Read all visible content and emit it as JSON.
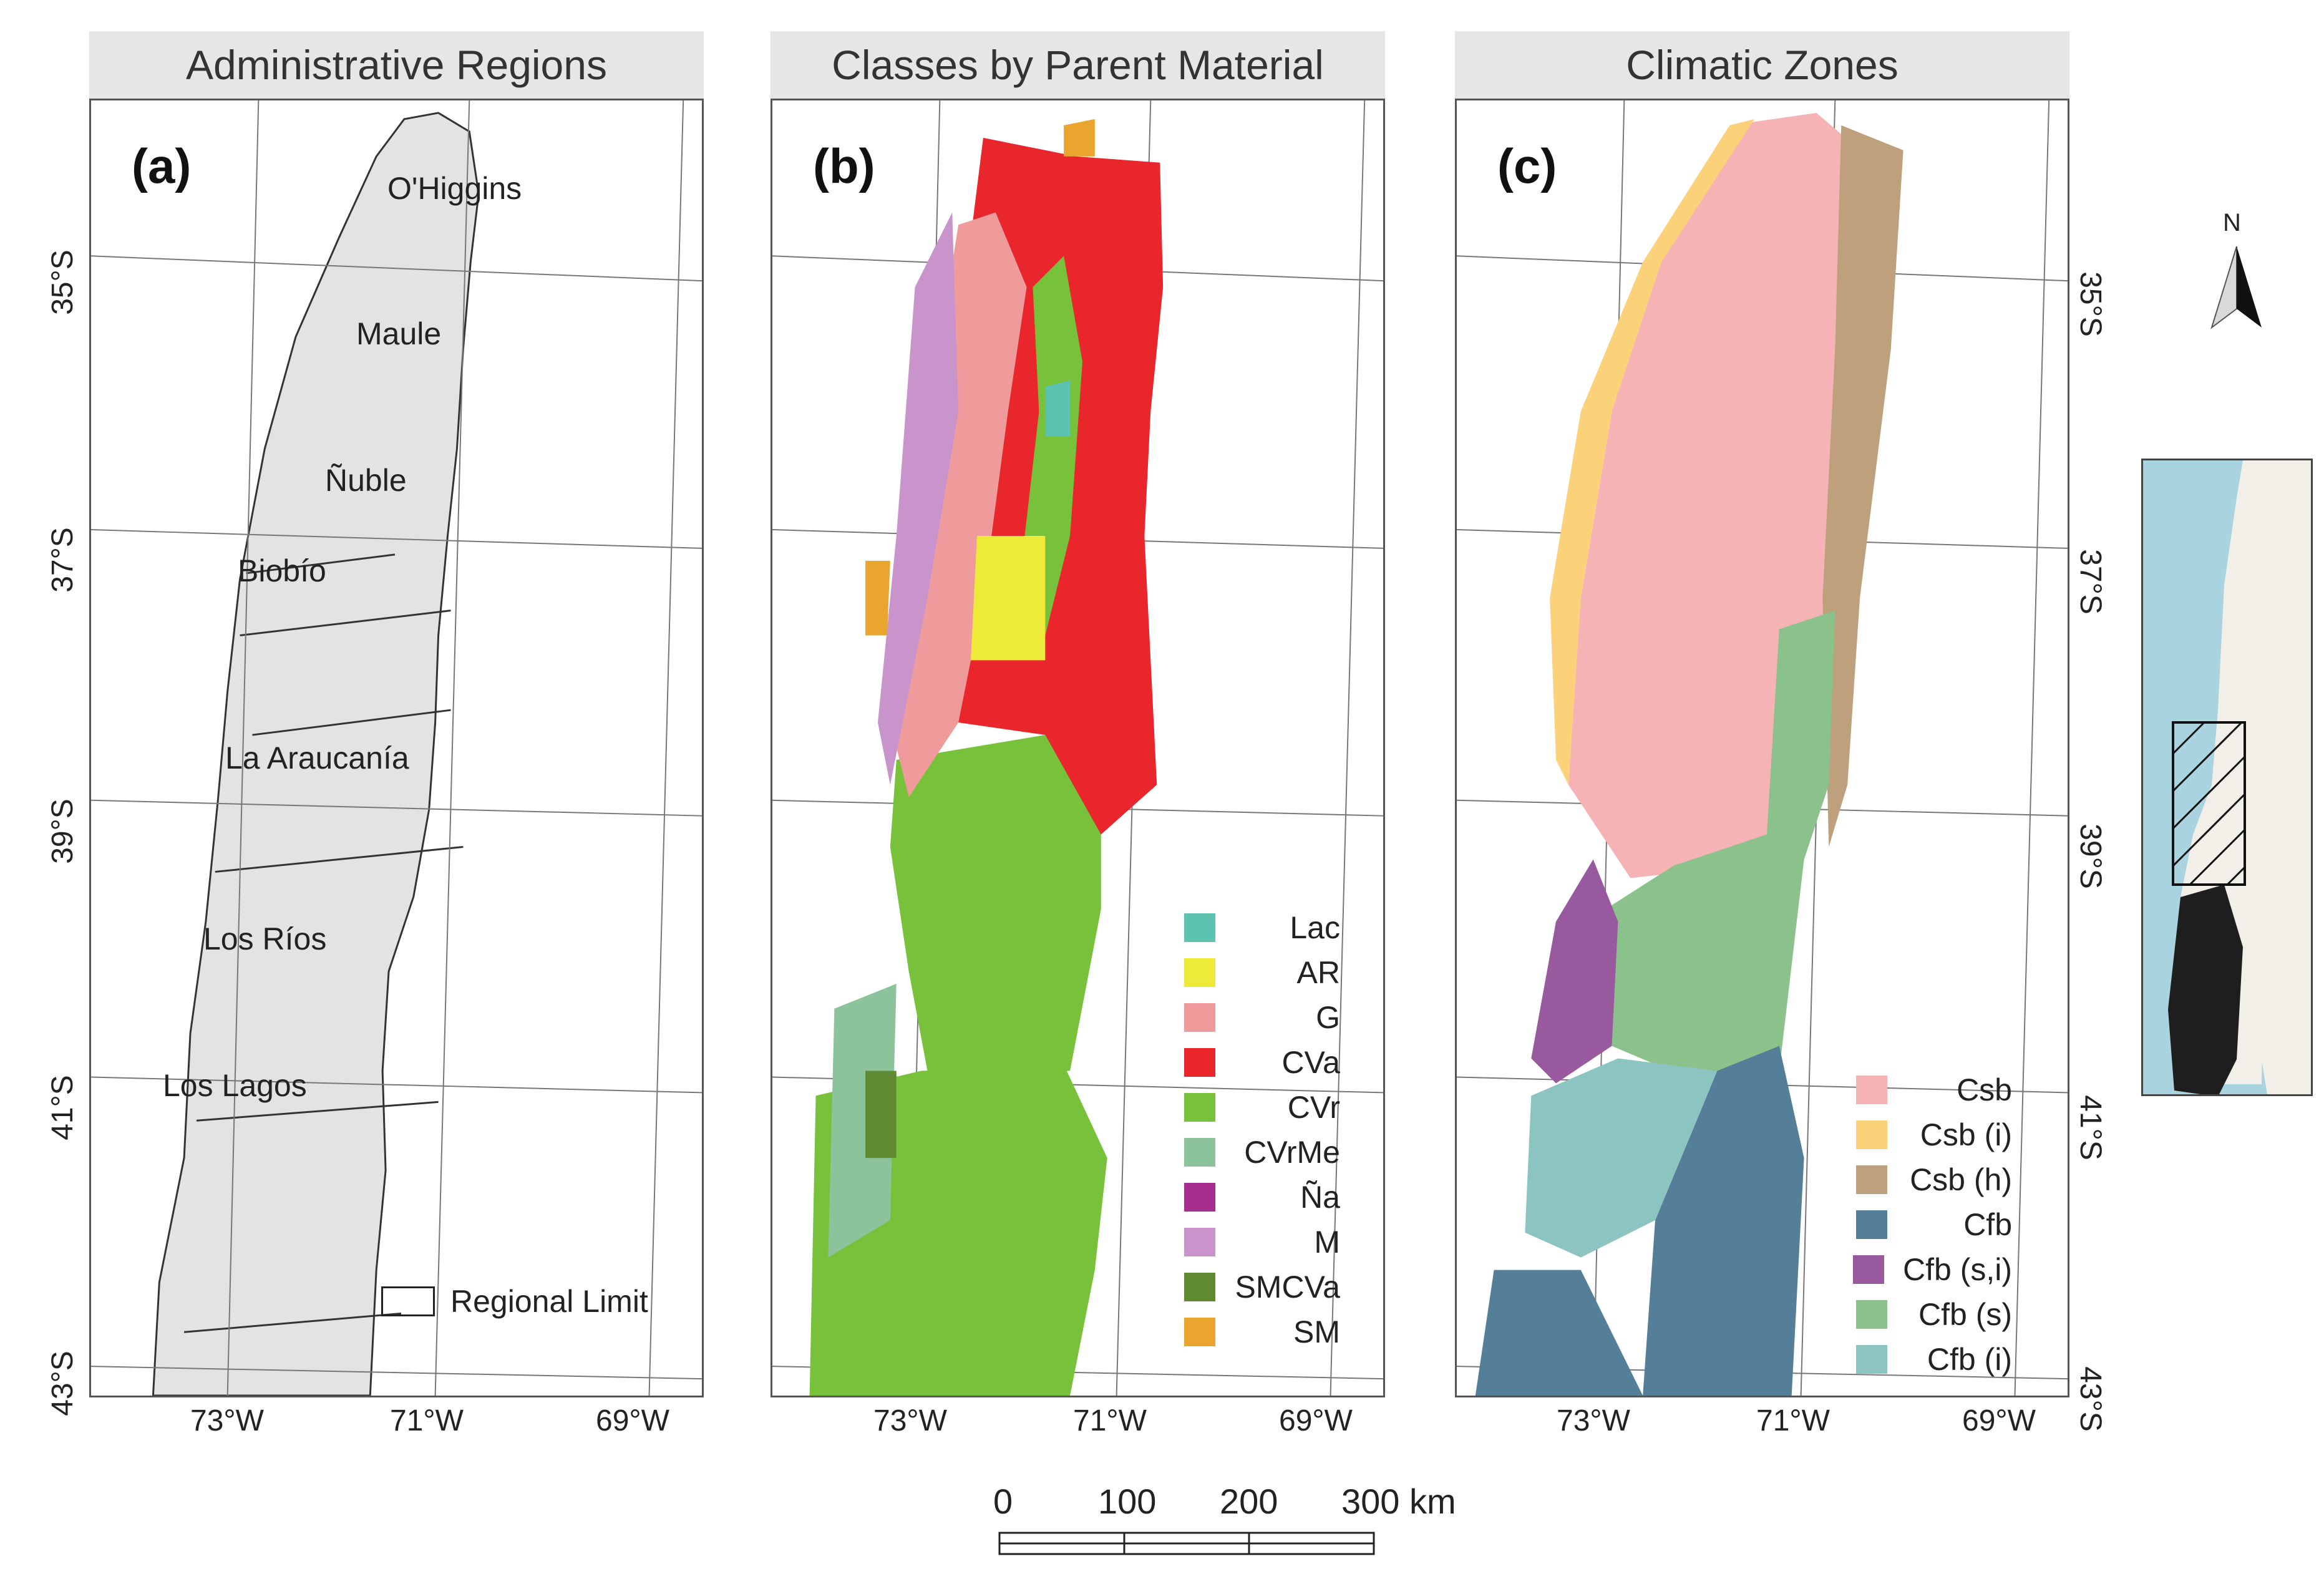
{
  "panels": [
    {
      "title": "Administrative Regions",
      "letter": "(a)"
    },
    {
      "title": "Classes by Parent Material",
      "letter": "(b)"
    },
    {
      "title": "Climatic Zones",
      "letter": "(c)"
    }
  ],
  "regions": [
    "O'Higgins",
    "Maule",
    "Ñuble",
    "Biobío",
    "La Araucanía",
    "Los Ríos",
    "Los Lagos"
  ],
  "regional_limit_label": "Regional Limit",
  "parent_material_legend": [
    {
      "label": "Lac",
      "color": "#5cc3b0"
    },
    {
      "label": "AR",
      "color": "#eeea3a"
    },
    {
      "label": "G",
      "color": "#f09b9b"
    },
    {
      "label": "CVa",
      "color": "#e8262c"
    },
    {
      "label": "CVr",
      "color": "#77c23a"
    },
    {
      "label": "CVrMe",
      "color": "#8dc39a"
    },
    {
      "label": "Ña",
      "color": "#a72d8f"
    },
    {
      "label": "M",
      "color": "#c994cc"
    },
    {
      "label": "SMCVa",
      "color": "#5f8a32"
    },
    {
      "label": "SM",
      "color": "#e9a52e"
    }
  ],
  "climate_legend": [
    {
      "label": "Csb",
      "color": "#f5b3b5"
    },
    {
      "label": "Csb (i)",
      "color": "#fbd27a"
    },
    {
      "label": "Csb (h)",
      "color": "#bea07c"
    },
    {
      "label": "Cfb",
      "color": "#557f99"
    },
    {
      "label": "Cfb (s,i)",
      "color": "#99599e"
    },
    {
      "label": "Cfb (s)",
      "color": "#8bc18b"
    },
    {
      "label": "Cfb (i)",
      "color": "#8cc4c2"
    }
  ],
  "lon_ticks": [
    "73°W",
    "71°W",
    "69°W"
  ],
  "lat_ticks": [
    "35°S",
    "37°S",
    "39°S",
    "41°S",
    "43°S"
  ],
  "scale": {
    "labels": [
      "0",
      "100",
      "200",
      "300 km"
    ]
  },
  "north_label": "N",
  "colors": {
    "header_bg": "#e6e6e6",
    "relief": "#e3e3e3",
    "ocean_inset": "#a9d3df",
    "land_inset": "#f2efe9"
  }
}
